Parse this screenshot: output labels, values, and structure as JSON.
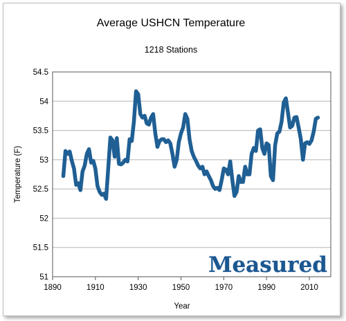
{
  "chart_data": {
    "type": "line",
    "title": "Average USHCN Temperature",
    "subtitle": "1218 Stations",
    "xlabel": "Year",
    "ylabel": "Temperature (F)",
    "xlim": [
      1890,
      2020
    ],
    "ylim": [
      51,
      54.5
    ],
    "x_ticks": [
      "1890",
      "1910",
      "1930",
      "1950",
      "1970",
      "1990",
      "2010"
    ],
    "y_ticks": [
      "54.5",
      "54",
      "53.5",
      "53",
      "52.5",
      "52",
      "51.5",
      "51"
    ],
    "grid": "horizontal",
    "legend": "none",
    "line_color": "#1f5f94",
    "watermark": "Measured",
    "series": [
      {
        "x": [
          1895,
          1896,
          1897,
          1898,
          1899,
          1900,
          1901,
          1902,
          1903,
          1904,
          1905,
          1906,
          1907,
          1908,
          1909,
          1910,
          1911,
          1912,
          1913,
          1914,
          1915,
          1916,
          1917,
          1918,
          1919,
          1920,
          1921,
          1922,
          1923,
          1924,
          1925,
          1926,
          1927,
          1928,
          1929,
          1930,
          1931,
          1932,
          1933,
          1934,
          1935,
          1936,
          1937,
          1938,
          1939,
          1940,
          1941,
          1942,
          1943,
          1944,
          1945,
          1946,
          1947,
          1948,
          1949,
          1950,
          1951,
          1952,
          1953,
          1954,
          1955,
          1956,
          1957,
          1958,
          1959,
          1960,
          1961,
          1962,
          1963,
          1964,
          1965,
          1966,
          1967,
          1968,
          1969,
          1970,
          1971,
          1972,
          1973,
          1974,
          1975,
          1976,
          1977,
          1978,
          1979,
          1980,
          1981,
          1982,
          1983,
          1984,
          1985,
          1986,
          1987,
          1988,
          1989,
          1990,
          1991,
          1992,
          1993,
          1994,
          1995,
          1996,
          1997,
          1998,
          1999,
          2000,
          2001,
          2002,
          2003,
          2004,
          2005,
          2006,
          2007,
          2008,
          2009,
          2010,
          2011,
          2012,
          2013,
          2014
        ],
        "values": [
          52.72,
          53.15,
          53.1,
          53.14,
          52.98,
          52.85,
          52.57,
          52.6,
          52.48,
          52.8,
          52.9,
          53.1,
          53.18,
          52.95,
          52.98,
          52.85,
          52.55,
          52.45,
          52.4,
          52.42,
          52.33,
          52.85,
          53.38,
          53.33,
          53.05,
          53.37,
          52.93,
          52.92,
          52.95,
          53.0,
          52.97,
          53.35,
          53.32,
          53.65,
          54.17,
          54.12,
          53.78,
          53.72,
          53.75,
          53.62,
          53.6,
          53.72,
          53.78,
          53.45,
          53.22,
          53.32,
          53.35,
          53.35,
          53.3,
          53.33,
          53.28,
          53.1,
          52.88,
          53.0,
          53.3,
          53.45,
          53.55,
          53.78,
          53.7,
          53.35,
          53.15,
          53.05,
          52.98,
          52.9,
          52.85,
          52.88,
          52.75,
          52.8,
          52.72,
          52.65,
          52.55,
          52.5,
          52.52,
          52.48,
          52.65,
          52.85,
          52.83,
          52.75,
          52.97,
          52.65,
          52.38,
          52.45,
          52.72,
          52.62,
          52.62,
          52.88,
          52.75,
          52.75,
          53.1,
          53.2,
          53.15,
          53.5,
          53.52,
          53.2,
          53.1,
          53.28,
          53.25,
          52.72,
          52.65,
          53.25,
          53.45,
          53.48,
          53.65,
          53.98,
          54.05,
          53.8,
          53.55,
          53.58,
          53.72,
          53.73,
          53.55,
          53.35,
          53.0,
          53.28,
          53.3,
          53.27,
          53.33,
          53.48,
          53.7,
          53.72
        ]
      }
    ]
  }
}
